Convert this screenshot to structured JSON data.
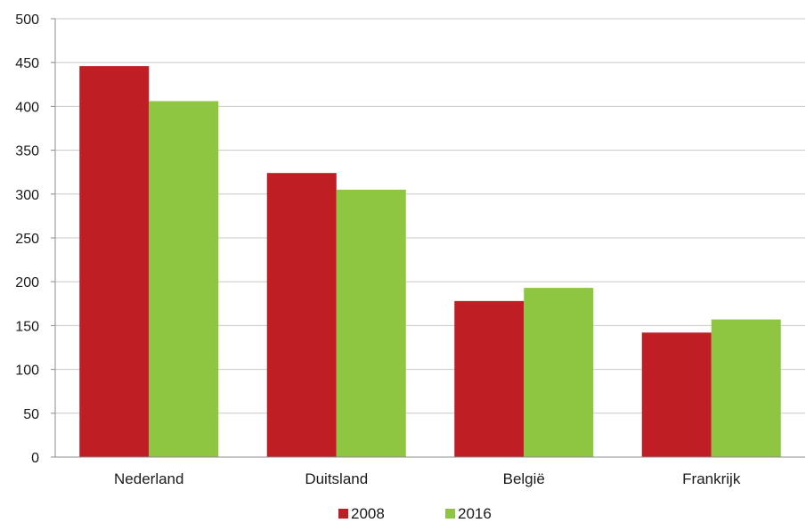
{
  "chart_data": {
    "type": "bar",
    "categories": [
      "Nederland",
      "Duitsland",
      "België",
      "Frankrijk"
    ],
    "series": [
      {
        "name": "2008",
        "color": "#be1e24",
        "values": [
          446,
          324,
          178,
          142
        ]
      },
      {
        "name": "2016",
        "color": "#8fc641",
        "values": [
          406,
          305,
          193,
          157
        ]
      }
    ],
    "ylim": [
      0,
      500
    ],
    "yticks": [
      "0",
      "50",
      "100",
      "150",
      "200",
      "250",
      "300",
      "350",
      "400",
      "450",
      "500"
    ],
    "grid": true,
    "legend": "bottom",
    "title": "",
    "xlabel": "",
    "ylabel": ""
  }
}
